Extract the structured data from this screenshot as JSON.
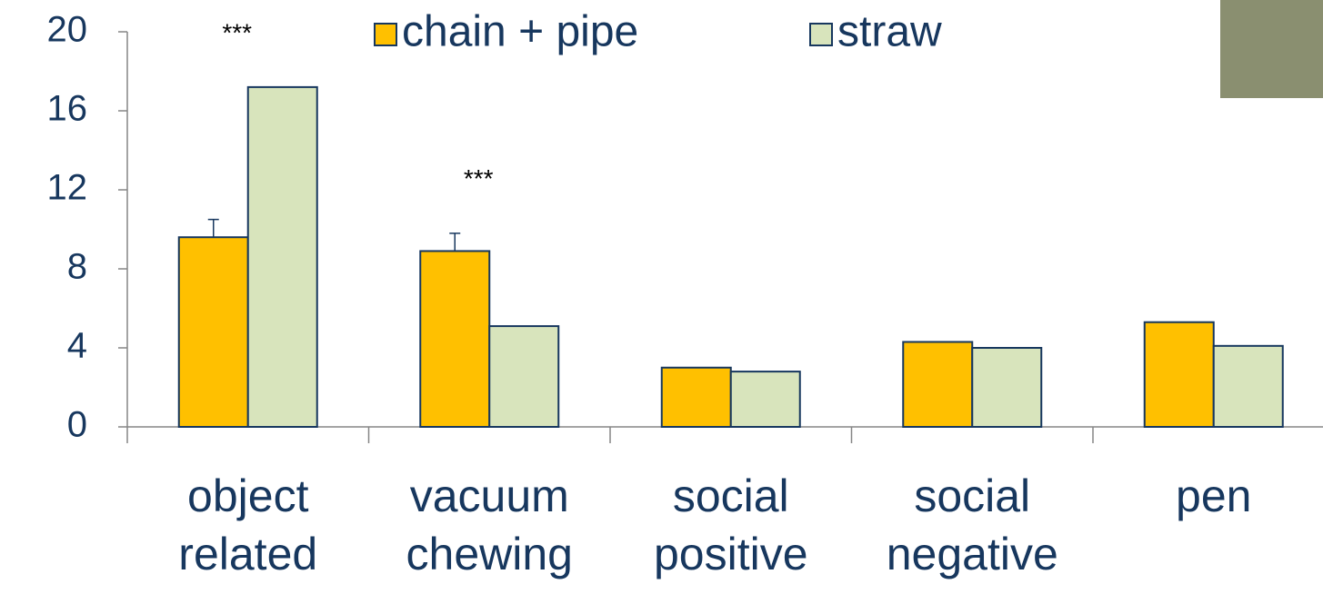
{
  "chart_data": {
    "type": "bar",
    "categories": [
      [
        "object",
        "related"
      ],
      [
        "vacuum",
        "chewing"
      ],
      [
        "social",
        "positive"
      ],
      [
        "social",
        "negative"
      ],
      [
        "pen"
      ]
    ],
    "series": [
      {
        "name": "chain + pipe",
        "color": "#ffc000",
        "values": [
          9.6,
          8.9,
          3.0,
          4.3,
          5.3
        ],
        "errors": [
          0.9,
          0.9,
          null,
          null,
          null
        ]
      },
      {
        "name": "straw",
        "color": "#d8e4bc",
        "values": [
          17.2,
          5.1,
          2.8,
          4.0,
          4.1
        ]
      }
    ],
    "annotations": [
      {
        "text": "***",
        "category": 0
      },
      {
        "text": "***",
        "category": 1
      }
    ],
    "ylim": [
      0,
      20
    ],
    "yticks": [
      0,
      4,
      8,
      12,
      16,
      20
    ],
    "legend": "top",
    "grid": false
  }
}
